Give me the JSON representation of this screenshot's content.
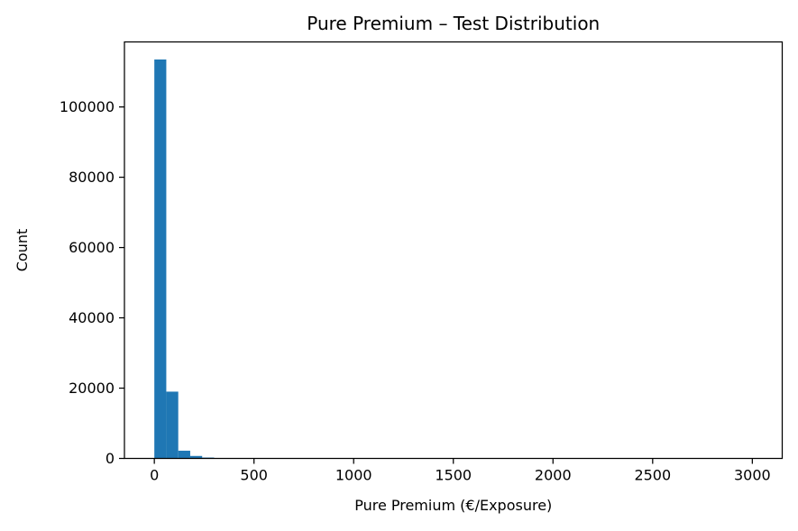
{
  "chart_data": {
    "type": "histogram",
    "title": "Pure Premium – Test Distribution",
    "xlabel": "Pure Premium (€/Exposure)",
    "ylabel": "Count",
    "xlim": [
      -150,
      3150
    ],
    "ylim": [
      0,
      118500
    ],
    "xticks": [
      0,
      500,
      1000,
      1500,
      2000,
      2500,
      3000
    ],
    "yticks": [
      0,
      20000,
      40000,
      60000,
      80000,
      100000
    ],
    "bar_color": "#1f77b4",
    "bins": [
      {
        "x0": 0,
        "x1": 60,
        "count": 113500
      },
      {
        "x0": 60,
        "x1": 120,
        "count": 19000
      },
      {
        "x0": 120,
        "x1": 180,
        "count": 2200
      },
      {
        "x0": 180,
        "x1": 240,
        "count": 700
      },
      {
        "x0": 240,
        "x1": 300,
        "count": 250
      },
      {
        "x0": 300,
        "x1": 360,
        "count": 110
      },
      {
        "x0": 360,
        "x1": 420,
        "count": 60
      },
      {
        "x0": 420,
        "x1": 480,
        "count": 35
      },
      {
        "x0": 480,
        "x1": 540,
        "count": 20
      },
      {
        "x0": 540,
        "x1": 600,
        "count": 12
      },
      {
        "x0": 600,
        "x1": 660,
        "count": 8
      },
      {
        "x0": 660,
        "x1": 720,
        "count": 6
      },
      {
        "x0": 720,
        "x1": 780,
        "count": 4
      },
      {
        "x0": 780,
        "x1": 840,
        "count": 3
      },
      {
        "x0": 840,
        "x1": 900,
        "count": 2
      },
      {
        "x0": 900,
        "x1": 960,
        "count": 2
      }
    ]
  }
}
